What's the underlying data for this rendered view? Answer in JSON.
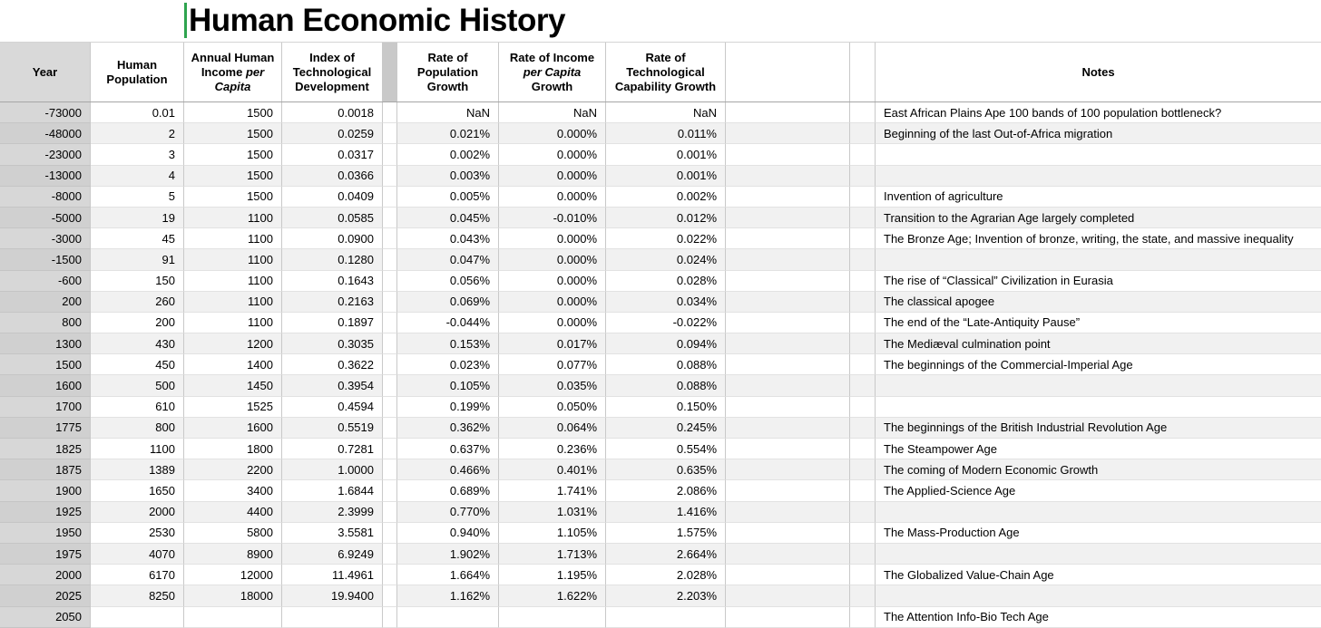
{
  "title": "Human Economic History",
  "caret_color": "#2ea44f",
  "columns": [
    {
      "id": "year",
      "label_segments": [
        {
          "t": "Year"
        }
      ]
    },
    {
      "id": "population",
      "label_segments": [
        {
          "t": "Human Population"
        }
      ]
    },
    {
      "id": "income",
      "label_segments": [
        {
          "t": "Annual Human Income "
        },
        {
          "t": "per Capita",
          "italic": true
        }
      ]
    },
    {
      "id": "tech_index",
      "label_segments": [
        {
          "t": "Index of Technological Development"
        }
      ]
    },
    {
      "id": "spacer_a",
      "label_segments": []
    },
    {
      "id": "pop_growth",
      "label_segments": [
        {
          "t": "Rate of Population Growth"
        }
      ]
    },
    {
      "id": "income_growth",
      "label_segments": [
        {
          "t": "Rate of Income "
        },
        {
          "t": "per Capita",
          "italic": true
        },
        {
          "t": " Growth"
        }
      ]
    },
    {
      "id": "tech_growth",
      "label_segments": [
        {
          "t": "Rate of Technological Capability Growth"
        }
      ]
    },
    {
      "id": "empty",
      "label_segments": []
    },
    {
      "id": "spacer_b",
      "label_segments": []
    },
    {
      "id": "notes",
      "label_segments": [
        {
          "t": "Notes"
        }
      ]
    }
  ],
  "rows": [
    {
      "year": "-73000",
      "population": "0.01",
      "income": "1500",
      "tech_index": "0.0018",
      "pop_growth": "NaN",
      "income_growth": "NaN",
      "tech_growth": "NaN",
      "note": "East African Plains Ape 100 bands of 100 population bottleneck?"
    },
    {
      "year": "-48000",
      "population": "2",
      "income": "1500",
      "tech_index": "0.0259",
      "pop_growth": "0.021%",
      "income_growth": "0.000%",
      "tech_growth": "0.011%",
      "note": "Beginning of the last Out-of-Africa migration"
    },
    {
      "year": "-23000",
      "population": "3",
      "income": "1500",
      "tech_index": "0.0317",
      "pop_growth": "0.002%",
      "income_growth": "0.000%",
      "tech_growth": "0.001%",
      "note": ""
    },
    {
      "year": "-13000",
      "population": "4",
      "income": "1500",
      "tech_index": "0.0366",
      "pop_growth": "0.003%",
      "income_growth": "0.000%",
      "tech_growth": "0.001%",
      "note": ""
    },
    {
      "year": "-8000",
      "population": "5",
      "income": "1500",
      "tech_index": "0.0409",
      "pop_growth": "0.005%",
      "income_growth": "0.000%",
      "tech_growth": "0.002%",
      "note": "Invention of agriculture"
    },
    {
      "year": "-5000",
      "population": "19",
      "income": "1100",
      "tech_index": "0.0585",
      "pop_growth": "0.045%",
      "income_growth": "-0.010%",
      "tech_growth": "0.012%",
      "note": "Transition to the Agrarian Age largely completed"
    },
    {
      "year": "-3000",
      "population": "45",
      "income": "1100",
      "tech_index": "0.0900",
      "pop_growth": "0.043%",
      "income_growth": "0.000%",
      "tech_growth": "0.022%",
      "note": "The Bronze Age; Invention of bronze, writing, the state, and massive inequality"
    },
    {
      "year": "-1500",
      "population": "91",
      "income": "1100",
      "tech_index": "0.1280",
      "pop_growth": "0.047%",
      "income_growth": "0.000%",
      "tech_growth": "0.024%",
      "note": ""
    },
    {
      "year": "-600",
      "population": "150",
      "income": "1100",
      "tech_index": "0.1643",
      "pop_growth": "0.056%",
      "income_growth": "0.000%",
      "tech_growth": "0.028%",
      "note": "The rise of “Classical” Civilization in Eurasia"
    },
    {
      "year": "200",
      "population": "260",
      "income": "1100",
      "tech_index": "0.2163",
      "pop_growth": "0.069%",
      "income_growth": "0.000%",
      "tech_growth": "0.034%",
      "note": "The classical apogee"
    },
    {
      "year": "800",
      "population": "200",
      "income": "1100",
      "tech_index": "0.1897",
      "pop_growth": "-0.044%",
      "income_growth": "0.000%",
      "tech_growth": "-0.022%",
      "note": "The end of the “Late-Antiquity Pause”"
    },
    {
      "year": "1300",
      "population": "430",
      "income": "1200",
      "tech_index": "0.3035",
      "pop_growth": "0.153%",
      "income_growth": "0.017%",
      "tech_growth": "0.094%",
      "note": "The Mediæval culmination point"
    },
    {
      "year": "1500",
      "population": "450",
      "income": "1400",
      "tech_index": "0.3622",
      "pop_growth": "0.023%",
      "income_growth": "0.077%",
      "tech_growth": "0.088%",
      "note": "The beginnings of the Commercial-Imperial Age"
    },
    {
      "year": "1600",
      "population": "500",
      "income": "1450",
      "tech_index": "0.3954",
      "pop_growth": "0.105%",
      "income_growth": "0.035%",
      "tech_growth": "0.088%",
      "note": ""
    },
    {
      "year": "1700",
      "population": "610",
      "income": "1525",
      "tech_index": "0.4594",
      "pop_growth": "0.199%",
      "income_growth": "0.050%",
      "tech_growth": "0.150%",
      "note": ""
    },
    {
      "year": "1775",
      "population": "800",
      "income": "1600",
      "tech_index": "0.5519",
      "pop_growth": "0.362%",
      "income_growth": "0.064%",
      "tech_growth": "0.245%",
      "note": "The beginnings of the British Industrial Revolution Age"
    },
    {
      "year": "1825",
      "population": "1100",
      "income": "1800",
      "tech_index": "0.7281",
      "pop_growth": "0.637%",
      "income_growth": "0.236%",
      "tech_growth": "0.554%",
      "note": "The Steampower Age"
    },
    {
      "year": "1875",
      "population": "1389",
      "income": "2200",
      "tech_index": "1.0000",
      "pop_growth": "0.466%",
      "income_growth": "0.401%",
      "tech_growth": "0.635%",
      "note": "The coming of Modern Economic Growth"
    },
    {
      "year": "1900",
      "population": "1650",
      "income": "3400",
      "tech_index": "1.6844",
      "pop_growth": "0.689%",
      "income_growth": "1.741%",
      "tech_growth": "2.086%",
      "note": "The Applied-Science Age"
    },
    {
      "year": "1925",
      "population": "2000",
      "income": "4400",
      "tech_index": "2.3999",
      "pop_growth": "0.770%",
      "income_growth": "1.031%",
      "tech_growth": "1.416%",
      "note": ""
    },
    {
      "year": "1950",
      "population": "2530",
      "income": "5800",
      "tech_index": "3.5581",
      "pop_growth": "0.940%",
      "income_growth": "1.105%",
      "tech_growth": "1.575%",
      "note": "The Mass-Production Age"
    },
    {
      "year": "1975",
      "population": "4070",
      "income": "8900",
      "tech_index": "6.9249",
      "pop_growth": "1.902%",
      "income_growth": "1.713%",
      "tech_growth": "2.664%",
      "note": ""
    },
    {
      "year": "2000",
      "population": "6170",
      "income": "12000",
      "tech_index": "11.4961",
      "pop_growth": "1.664%",
      "income_growth": "1.195%",
      "tech_growth": "2.028%",
      "note": "The Globalized Value-Chain Age"
    },
    {
      "year": "2025",
      "population": "8250",
      "income": "18000",
      "tech_index": "19.9400",
      "pop_growth": "1.162%",
      "income_growth": "1.622%",
      "tech_growth": "2.203%",
      "note": ""
    },
    {
      "year": "2050",
      "population": "",
      "income": "",
      "tech_index": "",
      "pop_growth": "",
      "income_growth": "",
      "tech_growth": "",
      "note": "The Attention Info-Bio Tech Age"
    }
  ]
}
